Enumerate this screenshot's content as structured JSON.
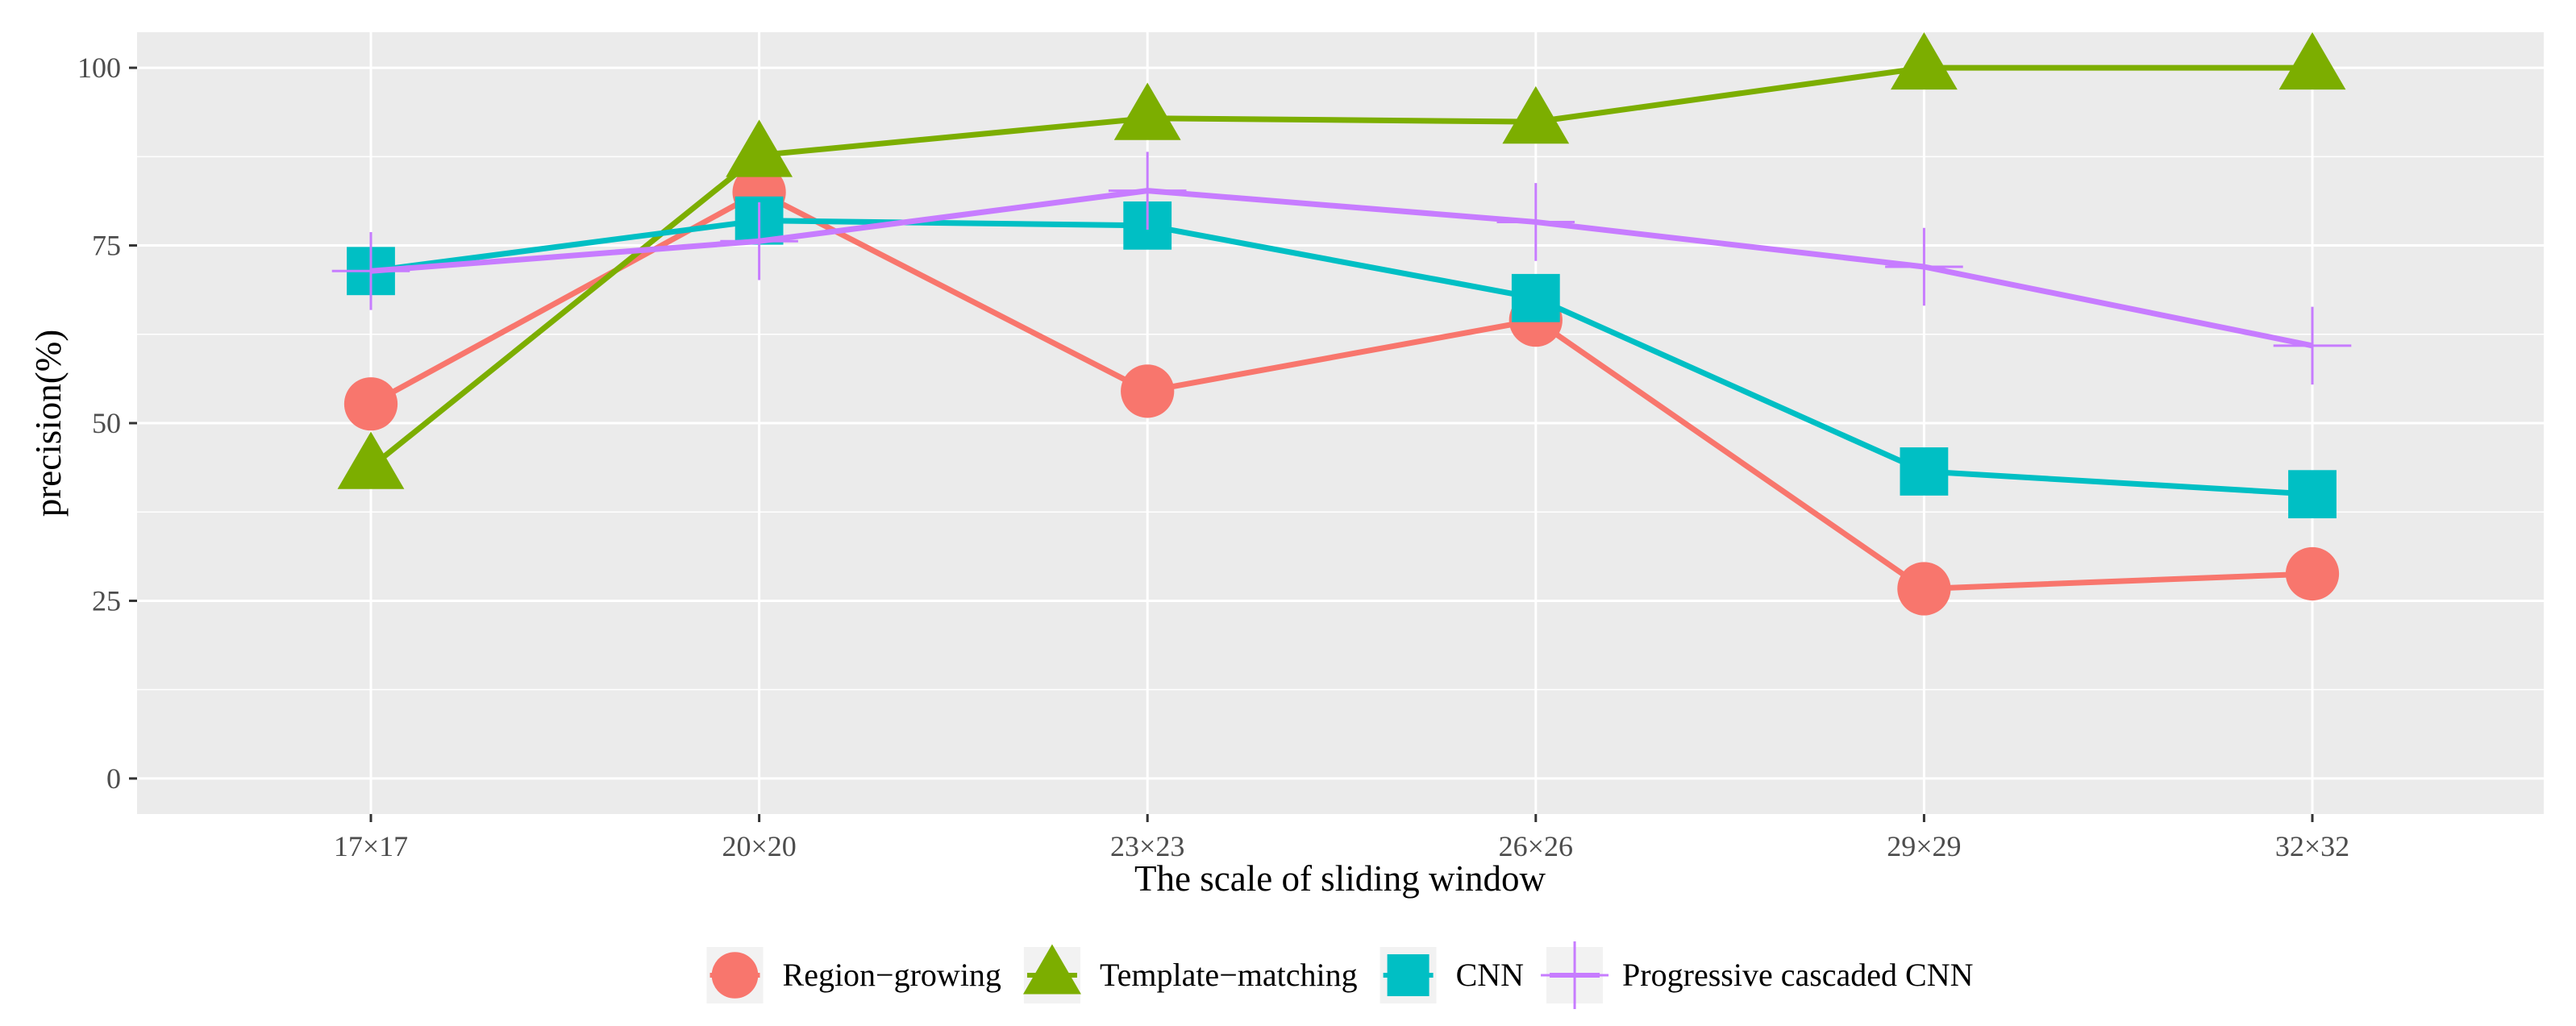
{
  "chart_data": {
    "type": "line",
    "title": "",
    "xlabel": "The scale of sliding window",
    "ylabel": "precision(%)",
    "categories": [
      "17×17",
      "20×20",
      "23×23",
      "26×26",
      "29×29",
      "32×32"
    ],
    "ylim": [
      -5,
      105
    ],
    "yticks": [
      0,
      25,
      50,
      75,
      100
    ],
    "grid": true,
    "legend_position": "bottom",
    "series": [
      {
        "name": "Region−growing",
        "marker": "circle",
        "color": "#F8766D",
        "values": [
          52.7,
          82.5,
          54.5,
          64.5,
          26.7,
          28.8
        ]
      },
      {
        "name": "Template−matching",
        "marker": "triangle",
        "color": "#7CAE00",
        "values": [
          43.8,
          87.7,
          92.9,
          92.4,
          100,
          100
        ]
      },
      {
        "name": "CNN",
        "marker": "square",
        "color": "#00BFC4",
        "values": [
          71.4,
          78.5,
          77.8,
          67.6,
          43.2,
          40.0
        ]
      },
      {
        "name": "Progressive cascaded CNN",
        "marker": "plus",
        "color": "#C77CFF",
        "values": [
          71.4,
          75.6,
          82.7,
          78.3,
          72.0,
          60.9
        ]
      }
    ]
  }
}
